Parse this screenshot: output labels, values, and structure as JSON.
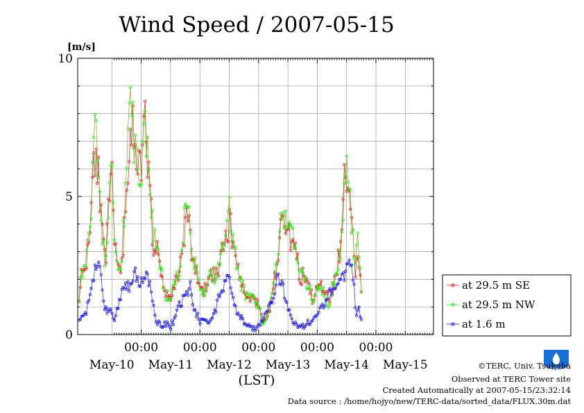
{
  "chart_data": {
    "type": "line",
    "title": "Wind Speed / 2007-05-15",
    "ylabel": "[m/s]",
    "xlabel": "(LST)",
    "ylim": [
      0,
      10
    ],
    "yticks": [
      0,
      5,
      10
    ],
    "xlim_days": [
      "2007-05-09 11:00",
      "2007-05-15 19:00"
    ],
    "hour_tick_label": "00:00",
    "day_labels": [
      "May-10",
      "May-11",
      "May-12",
      "May-13",
      "May-14",
      "May-15"
    ],
    "grid": true,
    "legend_position": "right",
    "series": [
      {
        "name": "at 29.5 m SE",
        "color": "#ff0000",
        "keypoints": [
          [
            0,
            1.4
          ],
          [
            0.03,
            2.1
          ],
          [
            0.12,
            2.6
          ],
          [
            0.2,
            4.2
          ],
          [
            0.25,
            6.9
          ],
          [
            0.32,
            6.3
          ],
          [
            0.38,
            4.0
          ],
          [
            0.45,
            2.5
          ],
          [
            0.55,
            6.0
          ],
          [
            0.63,
            2.7
          ],
          [
            0.7,
            2.0
          ],
          [
            0.78,
            4.2
          ],
          [
            0.85,
            6.8
          ],
          [
            0.9,
            7.7
          ],
          [
            0.95,
            6.3
          ],
          [
            1.0,
            5.8
          ],
          [
            1.07,
            6.1
          ],
          [
            1.12,
            7.8
          ],
          [
            1.2,
            5.3
          ],
          [
            1.27,
            3.3
          ],
          [
            1.33,
            3.0
          ],
          [
            1.4,
            2.3
          ],
          [
            1.45,
            1.6
          ],
          [
            1.55,
            1.3
          ],
          [
            1.63,
            1.8
          ],
          [
            1.7,
            2.2
          ],
          [
            1.77,
            3.3
          ],
          [
            1.83,
            4.3
          ],
          [
            1.88,
            3.8
          ],
          [
            1.93,
            2.7
          ],
          [
            2.0,
            2.3
          ],
          [
            2.05,
            1.7
          ],
          [
            2.12,
            1.5
          ],
          [
            2.2,
            1.9
          ],
          [
            2.27,
            2.2
          ],
          [
            2.33,
            2.2
          ],
          [
            2.4,
            2.5
          ],
          [
            2.47,
            3.2
          ],
          [
            2.55,
            4.0
          ],
          [
            2.6,
            3.8
          ],
          [
            2.67,
            2.8
          ],
          [
            2.73,
            2.2
          ],
          [
            2.8,
            1.6
          ],
          [
            2.87,
            1.3
          ],
          [
            2.95,
            1.5
          ],
          [
            3.0,
            1.2
          ],
          [
            3.07,
            1.0
          ],
          [
            3.13,
            0.4
          ],
          [
            3.2,
            0.6
          ],
          [
            3.27,
            1.1
          ],
          [
            3.33,
            2.0
          ],
          [
            3.4,
            2.8
          ],
          [
            3.47,
            4.8
          ],
          [
            3.52,
            4.1
          ],
          [
            3.58,
            3.6
          ],
          [
            3.65,
            3.3
          ],
          [
            3.7,
            2.9
          ],
          [
            3.75,
            2.3
          ],
          [
            3.82,
            2.1
          ],
          [
            3.88,
            1.8
          ],
          [
            3.93,
            1.6
          ],
          [
            4.0,
            1.2
          ],
          [
            4.05,
            1.6
          ],
          [
            4.1,
            1.8
          ],
          [
            4.17,
            1.6
          ],
          [
            4.25,
            1.3
          ],
          [
            4.33,
            1.6
          ],
          [
            4.4,
            2.5
          ],
          [
            4.47,
            3.4
          ],
          [
            4.53,
            5.9
          ],
          [
            4.58,
            5.7
          ],
          [
            4.63,
            4.6
          ],
          [
            4.7,
            2.3
          ],
          [
            4.75,
            2.6
          ],
          [
            4.8,
            1.7
          ],
          [
            4.83,
            1.2
          ]
        ]
      },
      {
        "name": "at 29.5 m NW",
        "color": "#00ff00",
        "keypoints": [
          [
            0,
            1.5
          ],
          [
            0.03,
            2.2
          ],
          [
            0.12,
            2.7
          ],
          [
            0.2,
            4.3
          ],
          [
            0.25,
            7.3
          ],
          [
            0.32,
            6.6
          ],
          [
            0.38,
            4.1
          ],
          [
            0.45,
            2.6
          ],
          [
            0.55,
            6.1
          ],
          [
            0.63,
            2.6
          ],
          [
            0.7,
            2.1
          ],
          [
            0.78,
            4.6
          ],
          [
            0.83,
            7.6
          ],
          [
            0.88,
            8.3
          ],
          [
            0.95,
            6.6
          ],
          [
            1.0,
            5.9
          ],
          [
            1.07,
            6.4
          ],
          [
            1.12,
            7.7
          ],
          [
            1.2,
            5.6
          ],
          [
            1.27,
            3.5
          ],
          [
            1.33,
            3.2
          ],
          [
            1.4,
            2.2
          ],
          [
            1.45,
            1.6
          ],
          [
            1.55,
            1.3
          ],
          [
            1.63,
            1.9
          ],
          [
            1.7,
            2.3
          ],
          [
            1.77,
            3.6
          ],
          [
            1.83,
            4.9
          ],
          [
            1.88,
            4.2
          ],
          [
            1.93,
            2.9
          ],
          [
            2.0,
            2.3
          ],
          [
            2.05,
            1.8
          ],
          [
            2.12,
            1.4
          ],
          [
            2.2,
            2.0
          ],
          [
            2.27,
            2.3
          ],
          [
            2.33,
            2.2
          ],
          [
            2.4,
            2.6
          ],
          [
            2.47,
            3.5
          ],
          [
            2.55,
            4.6
          ],
          [
            2.6,
            4.0
          ],
          [
            2.67,
            2.9
          ],
          [
            2.73,
            2.1
          ],
          [
            2.8,
            1.7
          ],
          [
            2.87,
            1.3
          ],
          [
            2.95,
            1.4
          ],
          [
            3.0,
            1.1
          ],
          [
            3.07,
            1.0
          ],
          [
            3.13,
            0.4
          ],
          [
            3.2,
            0.6
          ],
          [
            3.27,
            1.2
          ],
          [
            3.33,
            2.1
          ],
          [
            3.4,
            2.9
          ],
          [
            3.47,
            4.6
          ],
          [
            3.52,
            4.0
          ],
          [
            3.58,
            3.8
          ],
          [
            3.65,
            3.5
          ],
          [
            3.7,
            3.0
          ],
          [
            3.75,
            2.3
          ],
          [
            3.82,
            2.0
          ],
          [
            3.88,
            1.8
          ],
          [
            3.93,
            1.7
          ],
          [
            4.0,
            1.2
          ],
          [
            4.05,
            1.7
          ],
          [
            4.1,
            1.8
          ],
          [
            4.17,
            1.6
          ],
          [
            4.25,
            1.1
          ],
          [
            4.33,
            1.8
          ],
          [
            4.4,
            2.4
          ],
          [
            4.47,
            3.2
          ],
          [
            4.53,
            5.8
          ],
          [
            4.58,
            6.0
          ],
          [
            4.63,
            4.7
          ],
          [
            4.7,
            2.2
          ],
          [
            4.75,
            3.9
          ],
          [
            4.8,
            1.8
          ],
          [
            4.83,
            1.4
          ]
        ]
      },
      {
        "name": "at 1.6 m",
        "color": "#0000ff",
        "keypoints": [
          [
            0,
            0.5
          ],
          [
            0.06,
            0.7
          ],
          [
            0.12,
            0.8
          ],
          [
            0.18,
            1.3
          ],
          [
            0.24,
            1.9
          ],
          [
            0.28,
            2.5
          ],
          [
            0.33,
            2.4
          ],
          [
            0.38,
            2.1
          ],
          [
            0.42,
            1.1
          ],
          [
            0.48,
            0.8
          ],
          [
            0.55,
            0.9
          ],
          [
            0.6,
            0.5
          ],
          [
            0.66,
            1.0
          ],
          [
            0.72,
            1.5
          ],
          [
            0.78,
            1.7
          ],
          [
            0.84,
            1.8
          ],
          [
            0.9,
            1.6
          ],
          [
            0.95,
            2.2
          ],
          [
            1.0,
            2.1
          ],
          [
            1.05,
            1.8
          ],
          [
            1.1,
            2.0
          ],
          [
            1.16,
            2.1
          ],
          [
            1.2,
            1.9
          ],
          [
            1.25,
            1.2
          ],
          [
            1.3,
            0.6
          ],
          [
            1.36,
            0.4
          ],
          [
            1.42,
            0.3
          ],
          [
            1.5,
            0.4
          ],
          [
            1.56,
            0.3
          ],
          [
            1.62,
            0.5
          ],
          [
            1.7,
            1.0
          ],
          [
            1.78,
            1.3
          ],
          [
            1.85,
            1.4
          ],
          [
            1.9,
            1.7
          ],
          [
            1.95,
            1.0
          ],
          [
            2.0,
            0.7
          ],
          [
            2.07,
            0.5
          ],
          [
            2.14,
            0.6
          ],
          [
            2.2,
            0.4
          ],
          [
            2.27,
            0.6
          ],
          [
            2.33,
            0.9
          ],
          [
            2.4,
            1.4
          ],
          [
            2.47,
            1.8
          ],
          [
            2.53,
            2.0
          ],
          [
            2.6,
            1.8
          ],
          [
            2.65,
            1.0
          ],
          [
            2.72,
            0.7
          ],
          [
            2.8,
            0.5
          ],
          [
            2.87,
            0.3
          ],
          [
            2.95,
            0.3
          ],
          [
            3.0,
            0.2
          ],
          [
            3.07,
            0.3
          ],
          [
            3.13,
            0.5
          ],
          [
            3.2,
            0.9
          ],
          [
            3.27,
            1.2
          ],
          [
            3.33,
            1.4
          ],
          [
            3.38,
            2.1
          ],
          [
            3.43,
            2.0
          ],
          [
            3.48,
            1.8
          ],
          [
            3.52,
            1.2
          ],
          [
            3.57,
            0.9
          ],
          [
            3.63,
            0.5
          ],
          [
            3.7,
            0.4
          ],
          [
            3.77,
            0.3
          ],
          [
            3.83,
            0.3
          ],
          [
            3.9,
            0.4
          ],
          [
            3.97,
            0.5
          ],
          [
            4.03,
            0.7
          ],
          [
            4.1,
            0.9
          ],
          [
            4.17,
            1.1
          ],
          [
            4.25,
            1.5
          ],
          [
            4.33,
            1.6
          ],
          [
            4.4,
            1.7
          ],
          [
            4.47,
            2.0
          ],
          [
            4.53,
            2.2
          ],
          [
            4.58,
            2.9
          ],
          [
            4.63,
            2.7
          ],
          [
            4.68,
            2.0
          ],
          [
            4.72,
            0.6
          ],
          [
            4.76,
            1.0
          ],
          [
            4.8,
            0.6
          ],
          [
            4.83,
            0.4
          ]
        ]
      }
    ]
  },
  "credits": {
    "copyright": "©TERC, Univ. Tsukuba",
    "observed": "Observed at TERC Tower site",
    "created": "Created Automatically at 2007-05-15/23:32:14",
    "source": "Data source : /home/hojyo/new/TERC-data/sorted_data/FLUX.30m.dat"
  },
  "logo": {
    "text": "TERC",
    "color": "#1a6fd6"
  }
}
